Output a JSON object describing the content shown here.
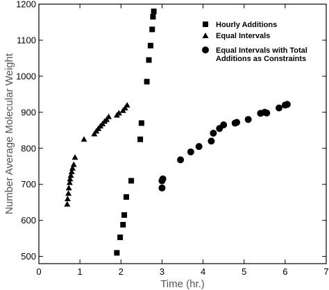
{
  "chart_data": {
    "type": "scatter",
    "title": "",
    "xlabel": "Time (hr.)",
    "ylabel": "Number Average Molecular Weight",
    "xlim": [
      0,
      7
    ],
    "ylim": [
      480,
      1200
    ],
    "x_ticks": [
      0,
      1,
      2,
      3,
      4,
      5,
      6,
      7
    ],
    "y_ticks": [
      500,
      600,
      700,
      800,
      900,
      1000,
      1100,
      1200
    ],
    "grid": false,
    "legend_position": "top-right",
    "series": [
      {
        "name": "Hourly Additions",
        "marker": "square",
        "points": [
          [
            1.9,
            510
          ],
          [
            1.98,
            553
          ],
          [
            2.05,
            588
          ],
          [
            2.08,
            615
          ],
          [
            2.13,
            665
          ],
          [
            2.25,
            710
          ],
          [
            2.47,
            825
          ],
          [
            2.5,
            870
          ],
          [
            2.63,
            985
          ],
          [
            2.68,
            1045
          ],
          [
            2.72,
            1085
          ],
          [
            2.76,
            1130
          ],
          [
            2.78,
            1165
          ],
          [
            2.8,
            1180
          ]
        ]
      },
      {
        "name": "Equal Intervals",
        "marker": "triangle",
        "points": [
          [
            0.69,
            645
          ],
          [
            0.7,
            660
          ],
          [
            0.72,
            675
          ],
          [
            0.73,
            690
          ],
          [
            0.75,
            705
          ],
          [
            0.76,
            715
          ],
          [
            0.78,
            725
          ],
          [
            0.8,
            735
          ],
          [
            0.82,
            745
          ],
          [
            0.85,
            755
          ],
          [
            0.88,
            775
          ],
          [
            1.1,
            825
          ],
          [
            1.35,
            840
          ],
          [
            1.4,
            848
          ],
          [
            1.45,
            855
          ],
          [
            1.5,
            862
          ],
          [
            1.55,
            868
          ],
          [
            1.6,
            875
          ],
          [
            1.65,
            880
          ],
          [
            1.7,
            888
          ],
          [
            1.9,
            892
          ],
          [
            1.95,
            898
          ],
          [
            2.05,
            905
          ],
          [
            2.1,
            912
          ],
          [
            2.15,
            920
          ]
        ]
      },
      {
        "name": "Equal Intervals with Total Additions as Constraints",
        "marker": "circle",
        "points": [
          [
            3.0,
            690
          ],
          [
            3.0,
            710
          ],
          [
            3.02,
            715
          ],
          [
            3.45,
            768
          ],
          [
            3.7,
            790
          ],
          [
            3.9,
            805
          ],
          [
            4.2,
            820
          ],
          [
            4.25,
            842
          ],
          [
            4.4,
            855
          ],
          [
            4.5,
            865
          ],
          [
            4.78,
            870
          ],
          [
            4.82,
            872
          ],
          [
            5.1,
            880
          ],
          [
            5.4,
            897
          ],
          [
            5.5,
            900
          ],
          [
            5.55,
            898
          ],
          [
            5.85,
            912
          ],
          [
            6.0,
            920
          ],
          [
            6.05,
            922
          ]
        ]
      }
    ]
  }
}
